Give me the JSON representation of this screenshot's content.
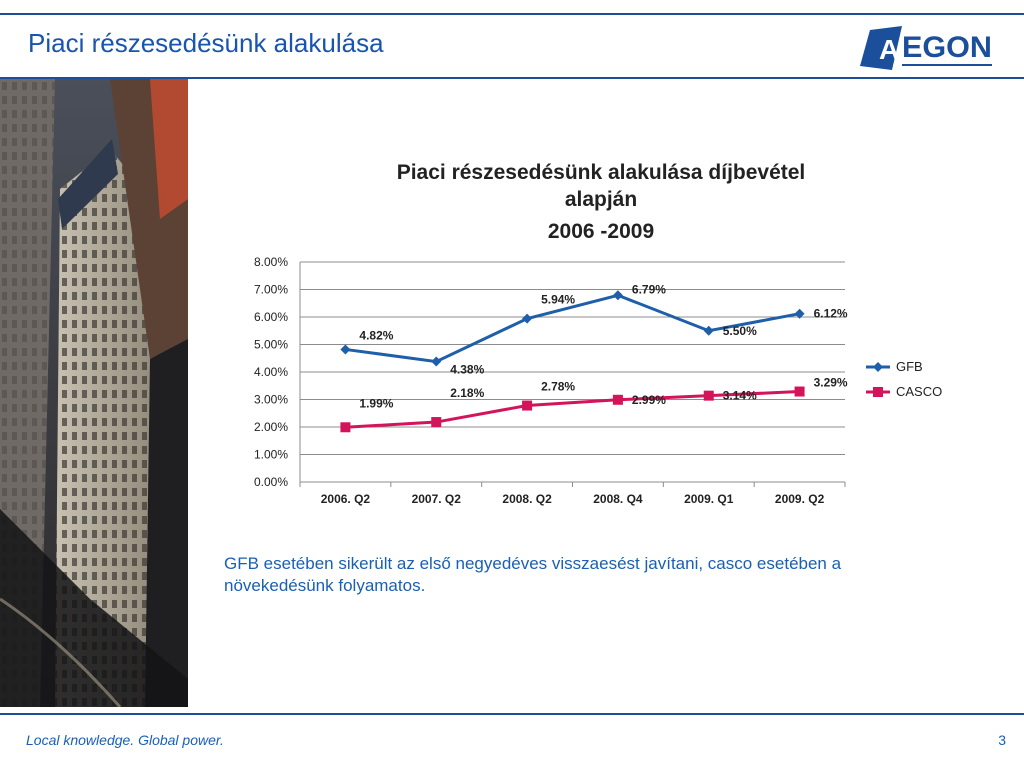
{
  "slide": {
    "title": "Piaci részesedésünk alakulása",
    "logo_text": "EGON",
    "logo_mark": "A",
    "commentary": "GFB esetében sikerült az első negyedéves visszaesést javítani, casco esetében a növekedésünk  folyamatos.",
    "footer_tagline": "Local knowledge. Global power.",
    "page_number": "3"
  },
  "colors": {
    "brand_blue": "#1b4f9c",
    "title_blue": "#1755b0",
    "gfb_series": "#1f5ea8",
    "casco_series": "#d4145a"
  },
  "chart_data": {
    "type": "line",
    "title_lines": [
      "Piaci részesedésünk alakulása díjbevétel",
      "alapján",
      "2006 -2009"
    ],
    "categories": [
      "2006. Q2",
      "2007. Q2",
      "2008. Q2",
      "2008. Q4",
      "2009. Q1",
      "2009. Q2"
    ],
    "series": [
      {
        "name": "GFB",
        "marker": "diamond",
        "color": "#1f5ea8",
        "values": [
          4.82,
          4.38,
          5.94,
          6.79,
          5.5,
          6.12
        ],
        "labels": [
          "4.82%",
          "4.38%",
          "5.94%",
          "6.79%",
          "5.50%",
          "6.12%"
        ]
      },
      {
        "name": "CASCO",
        "marker": "square",
        "color": "#d4145a",
        "values": [
          1.99,
          2.18,
          2.78,
          2.99,
          3.14,
          3.29
        ],
        "labels": [
          "1.99%",
          "2.18%",
          "2.78%",
          "2.99%",
          "3.14%",
          "3.29%"
        ]
      }
    ],
    "ylim": [
      0,
      8
    ],
    "yticks": [
      0,
      1,
      2,
      3,
      4,
      5,
      6,
      7,
      8
    ],
    "ytick_labels": [
      "0.00%",
      "1.00%",
      "2.00%",
      "3.00%",
      "4.00%",
      "5.00%",
      "6.00%",
      "7.00%",
      "8.00%"
    ],
    "grid": true,
    "legend": "right"
  }
}
